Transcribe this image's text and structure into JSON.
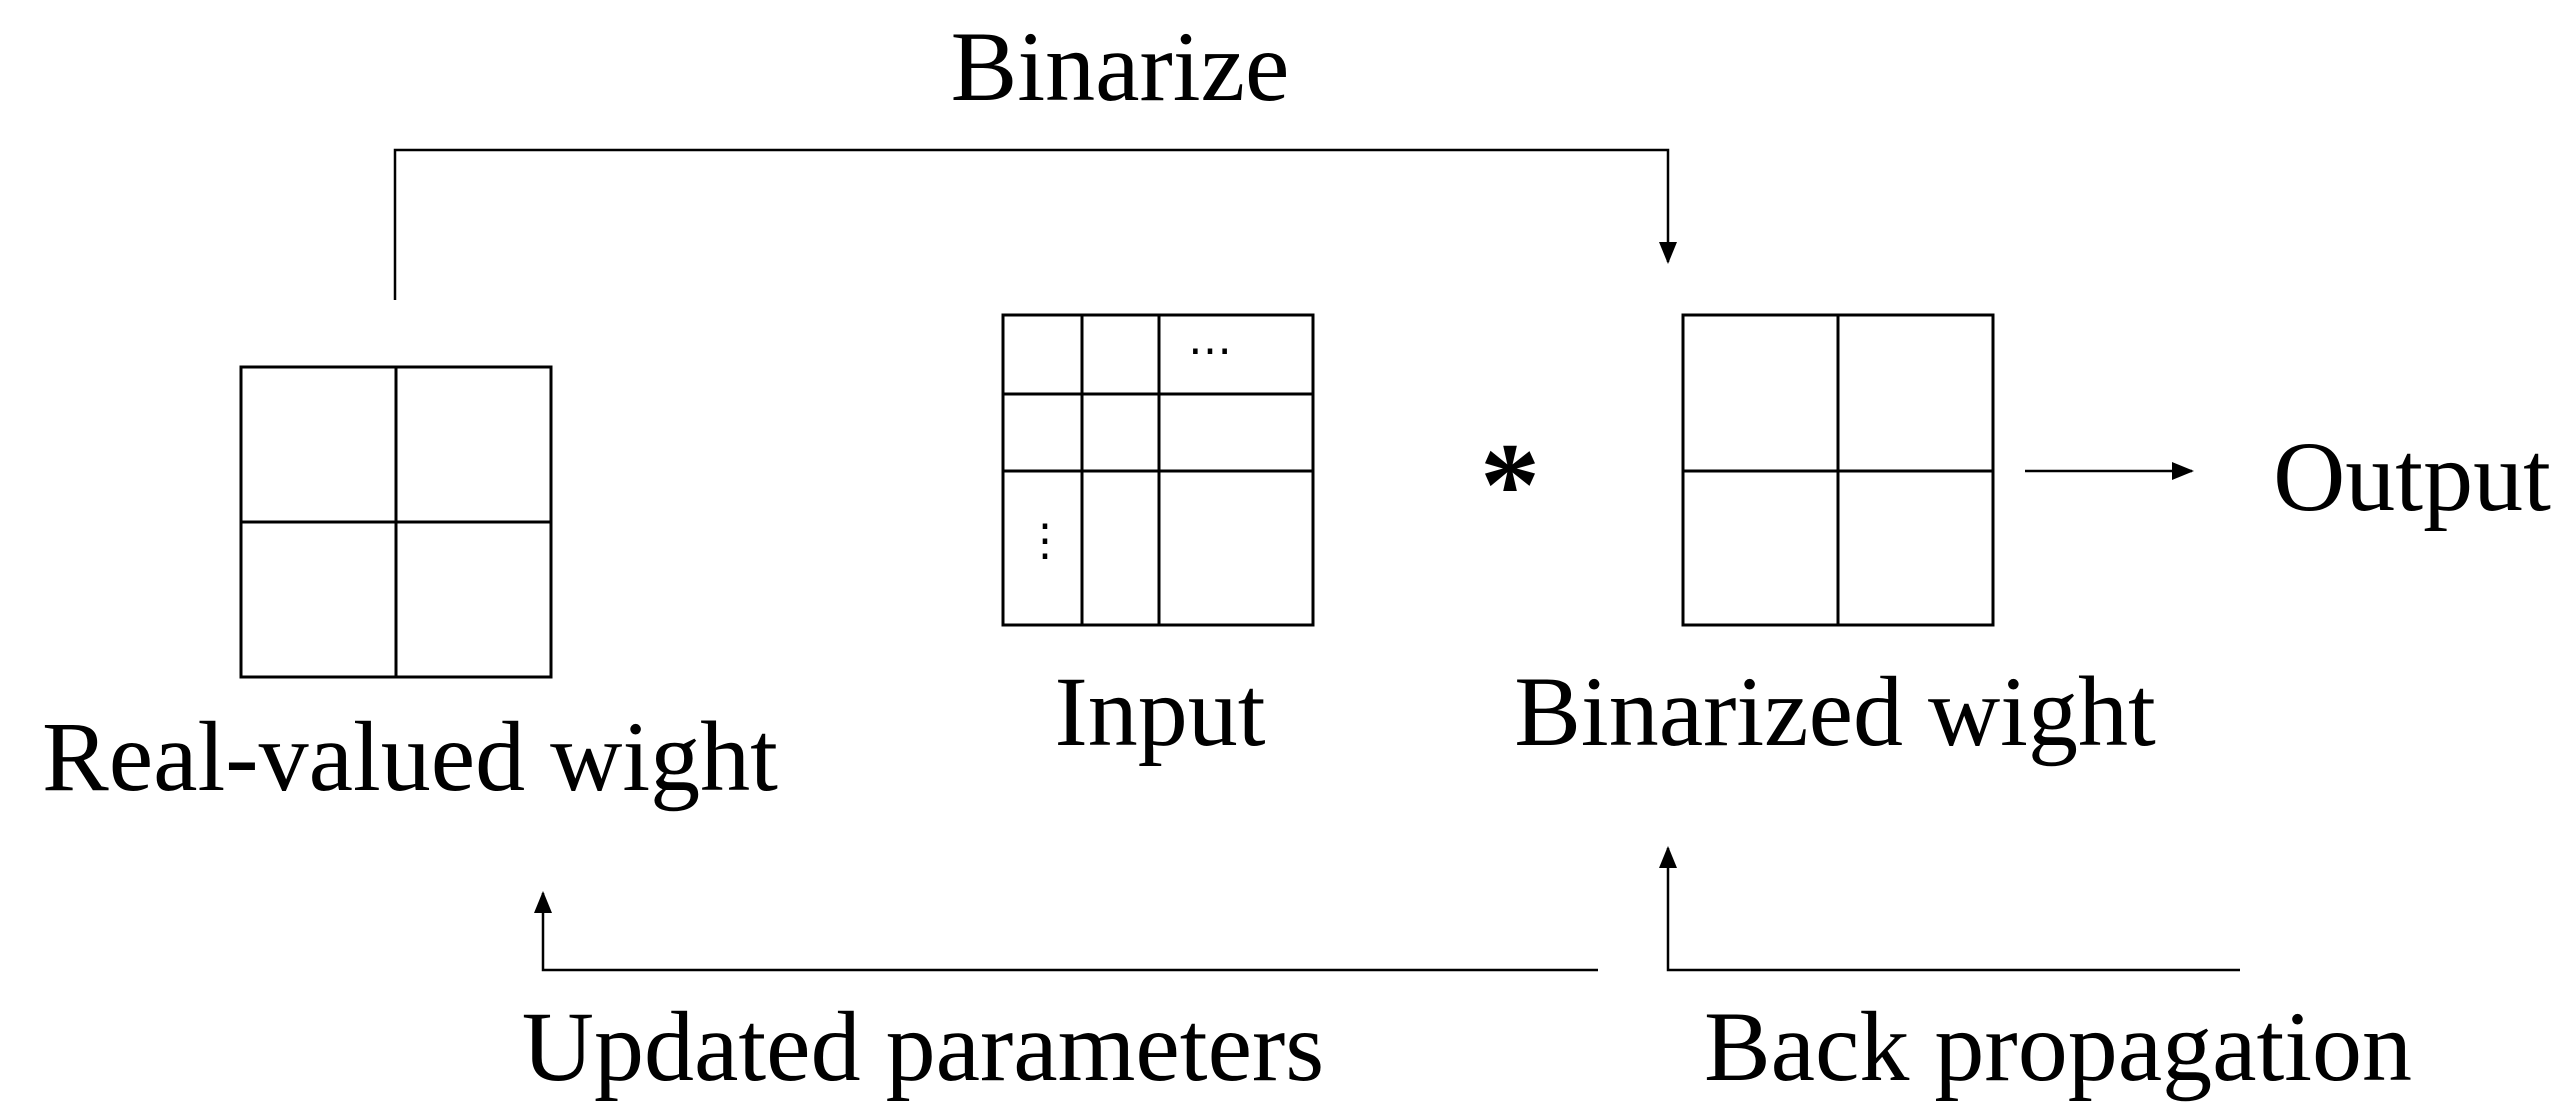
{
  "diagram": {
    "binarize_label": "Binarize",
    "real_weight_label": "Real-valued wight",
    "input_label": "Input",
    "binarized_weight_label": "Binarized wight",
    "output_label": "Output",
    "operator_symbol": "*",
    "updated_params_label": "Updated parameters",
    "backprop_label": "Back propagation",
    "input_ellipsis_horizontal": "⋯",
    "input_ellipsis_vertical": "⋮"
  },
  "colors": {
    "stroke": "#000000",
    "background": "#ffffff"
  }
}
